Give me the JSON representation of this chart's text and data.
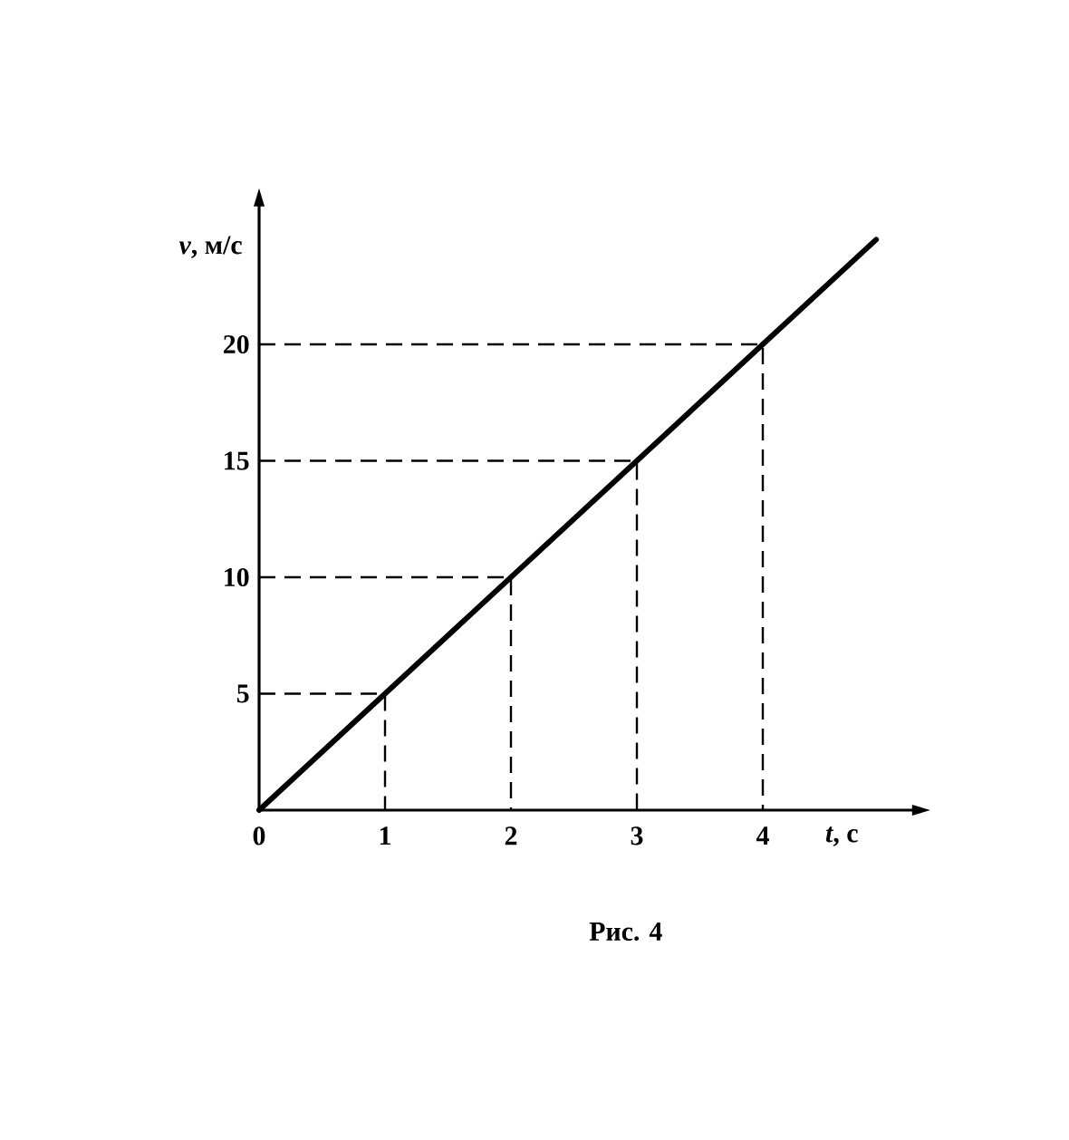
{
  "chart_data": {
    "type": "line",
    "xlabel": "*t*, с",
    "ylabel": "*v*, м/с",
    "annotations": [
      "Рис. 4"
    ],
    "xlim": [
      0,
      5.2
    ],
    "ylim": [
      0,
      26
    ],
    "xticks": [
      0,
      1,
      2,
      3,
      4
    ],
    "yticks": [
      5,
      10,
      15,
      20
    ],
    "series": [
      {
        "color": "#000000",
        "line_style": "solid",
        "x": [
          0,
          4.9
        ],
        "values": [
          0,
          24.5
        ]
      },
      {
        "color": "#000000",
        "line_style": "dashed",
        "x": [
          0,
          1,
          1
        ],
        "values": [
          5,
          5,
          0
        ]
      },
      {
        "color": "#000000",
        "line_style": "dashed",
        "x": [
          0,
          2,
          2
        ],
        "values": [
          10,
          10,
          0
        ]
      },
      {
        "color": "#000000",
        "line_style": "dashed",
        "x": [
          0,
          3,
          3
        ],
        "values": [
          15,
          15,
          0
        ]
      },
      {
        "color": "#000000",
        "line_style": "dashed",
        "x": [
          0,
          4,
          4
        ],
        "values": [
          20,
          20,
          0
        ]
      }
    ]
  }
}
